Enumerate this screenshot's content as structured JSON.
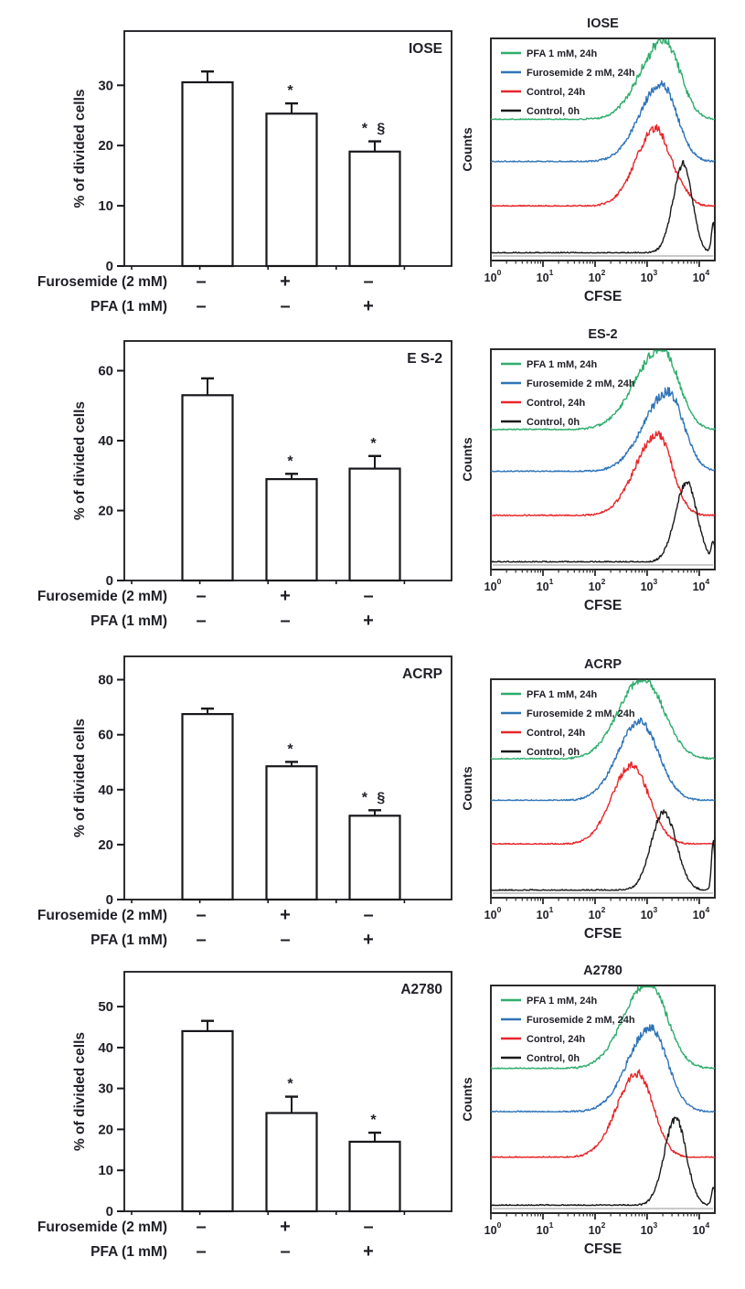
{
  "figure_title": "",
  "chart_data": {
    "legend": [
      {
        "label": "PFA 1 mM, 24h",
        "color": "#2ead6b"
      },
      {
        "label": "Furosemide 2 mM, 24h",
        "color": "#2e74b8"
      },
      {
        "label": "Control, 24h",
        "color": "#e8262a"
      },
      {
        "label": "Control, 0h",
        "color": "#1a1a1a"
      }
    ],
    "conditions": {
      "rows": [
        {
          "label": "Furosemide (2 mM)",
          "values": [
            "-",
            "+",
            "-"
          ]
        },
        {
          "label": "PFA (1 mM)",
          "values": [
            "-",
            "-",
            "+"
          ]
        }
      ]
    },
    "rows": [
      {
        "cell_line": "IOSE",
        "bar_chart": {
          "type": "bar",
          "title": "IOSE",
          "ylabel": "% of divided cells",
          "ylim": [
            0,
            39
          ],
          "yticks": [
            0,
            10,
            20,
            30
          ],
          "values": [
            30.5,
            25.3,
            19.0
          ],
          "errors": [
            1.8,
            1.7,
            1.7
          ],
          "annotations": [
            "",
            "*",
            "* §"
          ]
        },
        "histogram": {
          "type": "line",
          "title": "IOSE",
          "xlabel": "CFSE",
          "ylabel": "Counts",
          "x_scale": "log10",
          "x_range_log": [
            0,
            4.3
          ],
          "xticks": [
            "10^0",
            "10^1",
            "10^2",
            "10^3",
            "10^4"
          ],
          "curves": [
            {
              "name": "PFA 1 mM, 24h",
              "color": "#2ead6b",
              "baseline_frac": 0.365,
              "peak_log": 3.33,
              "amp_frac": 0.36,
              "sigma_left": 0.45,
              "sigma_right": 0.3,
              "peak_noise": 0.7
            },
            {
              "name": "Furosemide 2 mM, 24h",
              "color": "#2e74b8",
              "baseline_frac": 0.555,
              "peak_log": 3.27,
              "amp_frac": 0.35,
              "sigma_left": 0.42,
              "sigma_right": 0.3,
              "peak_noise": 0.45
            },
            {
              "name": "Control, 24h",
              "color": "#e8262a",
              "baseline_frac": 0.755,
              "peak_log": 3.17,
              "amp_frac": 0.35,
              "sigma_left": 0.38,
              "sigma_right": 0.26,
              "peak_noise": 0.45,
              "shoulder": {
                "dx": 0.5,
                "amp": 0.05
              }
            },
            {
              "name": "Control, 0h",
              "color": "#1a1a1a",
              "baseline_frac": 0.966,
              "peak_log": 3.7,
              "amp_frac": 0.4,
              "sigma_left": 0.2,
              "sigma_right": 0.17,
              "peak_noise": 0.3,
              "edge_spike": 0.13
            }
          ]
        }
      },
      {
        "cell_line": "ES-2",
        "bar_chart": {
          "type": "bar",
          "title": "E S-2",
          "ylabel": "% of divided cells",
          "ylim": [
            0,
            68.5
          ],
          "yticks": [
            0,
            20,
            40,
            60
          ],
          "values": [
            53.0,
            29.0,
            32.0
          ],
          "errors": [
            4.8,
            1.5,
            3.6
          ],
          "annotations": [
            "",
            "*",
            "*"
          ]
        },
        "histogram": {
          "type": "line",
          "title": "ES-2",
          "xlabel": "CFSE",
          "ylabel": "Counts",
          "x_scale": "log10",
          "x_range_log": [
            0,
            4.3
          ],
          "xticks": [
            "10^0",
            "10^1",
            "10^2",
            "10^3",
            "10^4"
          ],
          "curves": [
            {
              "name": "PFA 1 mM, 24h",
              "color": "#2ead6b",
              "baseline_frac": 0.365,
              "peak_log": 3.28,
              "amp_frac": 0.37,
              "sigma_left": 0.5,
              "sigma_right": 0.32,
              "peak_noise": 0.5
            },
            {
              "name": "Furosemide 2 mM, 24h",
              "color": "#2e74b8",
              "baseline_frac": 0.555,
              "peak_log": 3.4,
              "amp_frac": 0.36,
              "sigma_left": 0.46,
              "sigma_right": 0.3,
              "peak_noise": 0.5
            },
            {
              "name": "Control, 24h",
              "color": "#e8262a",
              "baseline_frac": 0.755,
              "peak_log": 3.2,
              "amp_frac": 0.37,
              "sigma_left": 0.42,
              "sigma_right": 0.28,
              "peak_noise": 0.4
            },
            {
              "name": "Control, 0h",
              "color": "#1a1a1a",
              "baseline_frac": 0.966,
              "peak_log": 3.76,
              "amp_frac": 0.36,
              "sigma_left": 0.22,
              "sigma_right": 0.2,
              "peak_noise": 0.3,
              "edge_spike": 0.08
            }
          ]
        }
      },
      {
        "cell_line": "ACRP",
        "bar_chart": {
          "type": "bar",
          "title": "ACRP",
          "ylabel": "% of divided cells",
          "ylim": [
            0,
            88.5
          ],
          "yticks": [
            0,
            20,
            40,
            60,
            80
          ],
          "values": [
            67.5,
            48.5,
            30.5
          ],
          "errors": [
            2.0,
            1.6,
            2.0
          ],
          "annotations": [
            "",
            "*",
            "* §"
          ]
        },
        "histogram": {
          "type": "line",
          "title": "ACRP",
          "xlabel": "CFSE",
          "ylabel": "Counts",
          "x_scale": "log10",
          "x_range_log": [
            0,
            4.3
          ],
          "xticks": [
            "10^0",
            "10^1",
            "10^2",
            "10^3",
            "10^4"
          ],
          "curves": [
            {
              "name": "PFA 1 mM, 24h",
              "color": "#2ead6b",
              "baseline_frac": 0.365,
              "peak_log": 2.92,
              "amp_frac": 0.37,
              "sigma_left": 0.46,
              "sigma_right": 0.4,
              "peak_noise": 0.4
            },
            {
              "name": "Furosemide 2 mM, 24h",
              "color": "#2e74b8",
              "baseline_frac": 0.555,
              "peak_log": 2.86,
              "amp_frac": 0.36,
              "sigma_left": 0.42,
              "sigma_right": 0.36,
              "peak_noise": 0.4
            },
            {
              "name": "Control, 24h",
              "color": "#e8262a",
              "baseline_frac": 0.755,
              "peak_log": 2.7,
              "amp_frac": 0.36,
              "sigma_left": 0.38,
              "sigma_right": 0.34,
              "peak_noise": 0.4
            },
            {
              "name": "Control, 0h",
              "color": "#1a1a1a",
              "baseline_frac": 0.966,
              "peak_log": 3.32,
              "amp_frac": 0.36,
              "sigma_left": 0.24,
              "sigma_right": 0.24,
              "peak_noise": 0.3,
              "edge_spike": 0.22
            }
          ]
        }
      },
      {
        "cell_line": "A2780",
        "bar_chart": {
          "type": "bar",
          "title": "A2780",
          "ylabel": "% of divided cells",
          "ylim": [
            0,
            58.5
          ],
          "yticks": [
            0,
            10,
            20,
            30,
            40,
            50
          ],
          "values": [
            44.0,
            24.0,
            17.0
          ],
          "errors": [
            2.5,
            4.0,
            2.2
          ],
          "annotations": [
            "",
            "*",
            "*"
          ]
        },
        "histogram": {
          "type": "line",
          "title": "A2780",
          "xlabel": "CFSE",
          "ylabel": "Counts",
          "x_scale": "log10",
          "x_range_log": [
            0,
            4.3
          ],
          "xticks": [
            "10^0",
            "10^1",
            "10^2",
            "10^3",
            "10^4"
          ],
          "curves": [
            {
              "name": "PFA 1 mM, 24h",
              "color": "#2ead6b",
              "baseline_frac": 0.365,
              "peak_log": 3.02,
              "amp_frac": 0.38,
              "sigma_left": 0.46,
              "sigma_right": 0.36,
              "peak_noise": 0.4
            },
            {
              "name": "Furosemide 2 mM, 24h",
              "color": "#2e74b8",
              "baseline_frac": 0.555,
              "peak_log": 3.06,
              "amp_frac": 0.37,
              "sigma_left": 0.43,
              "sigma_right": 0.33,
              "peak_noise": 0.4
            },
            {
              "name": "Control, 24h",
              "color": "#e8262a",
              "baseline_frac": 0.755,
              "peak_log": 2.82,
              "amp_frac": 0.37,
              "sigma_left": 0.4,
              "sigma_right": 0.3,
              "peak_noise": 0.4
            },
            {
              "name": "Control, 0h",
              "color": "#1a1a1a",
              "baseline_frac": 0.966,
              "peak_log": 3.55,
              "amp_frac": 0.38,
              "sigma_left": 0.22,
              "sigma_right": 0.2,
              "peak_noise": 0.3,
              "edge_spike": 0.08
            }
          ]
        }
      }
    ]
  }
}
